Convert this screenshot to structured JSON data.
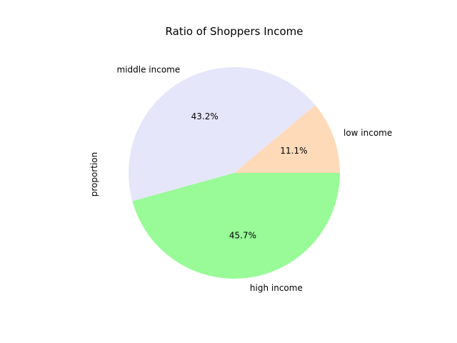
{
  "chart_data": {
    "type": "pie",
    "title": "Ratio of Shoppers Income",
    "ylabel": "proportion",
    "start_angle_deg": 0,
    "direction": "counterclockwise",
    "slices": [
      {
        "label": "low income",
        "value": 11.1,
        "pct_label": "11.1%",
        "color": "#ffdab9"
      },
      {
        "label": "middle income",
        "value": 43.2,
        "pct_label": "43.2%",
        "color": "#e6e6fa"
      },
      {
        "label": "high income",
        "value": 45.7,
        "pct_label": "45.7%",
        "color": "#98fb98"
      }
    ]
  }
}
